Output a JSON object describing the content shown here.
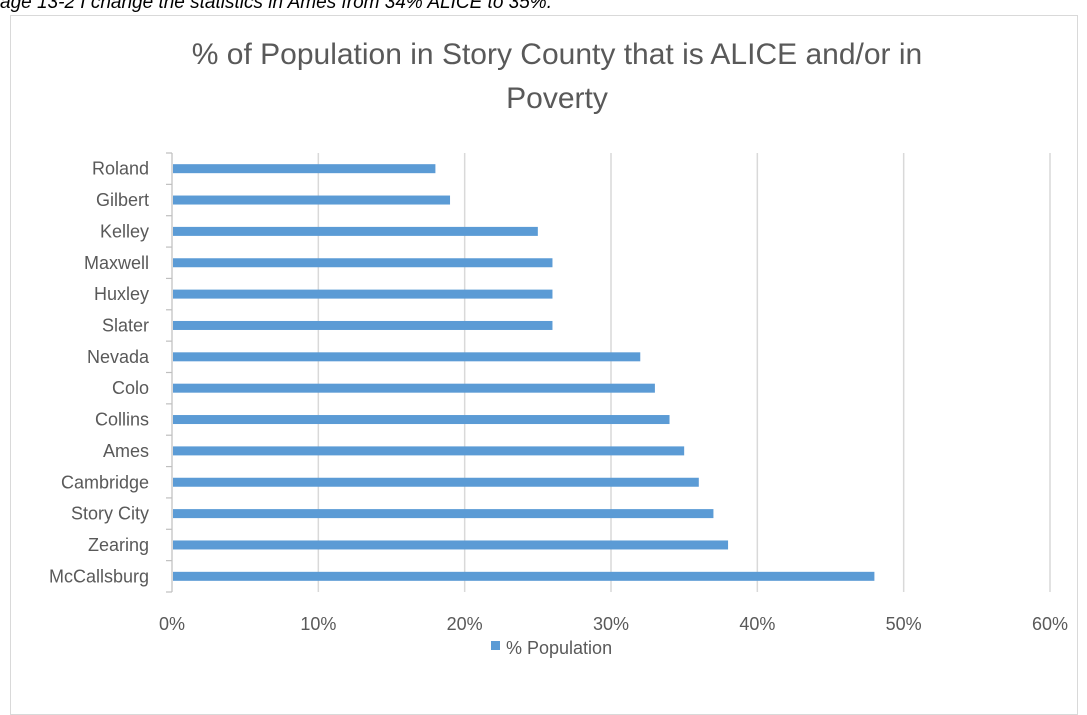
{
  "page_note": "age 13-2 I change the statistics in Ames from 34% ALICE to 35%.",
  "chart_data": {
    "type": "bar",
    "orientation": "horizontal",
    "title_lines": [
      "% of Population in Story County that is ALICE and/or in",
      "Poverty"
    ],
    "categories": [
      "Roland",
      "Gilbert",
      "Kelley",
      "Maxwell",
      "Huxley",
      "Slater",
      "Nevada",
      "Colo",
      "Collins",
      "Ames ",
      "Cambridge",
      "Story City",
      "Zearing",
      "McCallsburg"
    ],
    "series": [
      {
        "name": "% Population",
        "values": [
          18,
          19,
          25,
          26,
          26,
          26,
          32,
          33,
          34,
          35,
          36,
          37,
          38,
          48
        ]
      }
    ],
    "xlim": [
      0,
      60
    ],
    "xticks": [
      0,
      10,
      20,
      30,
      40,
      50,
      60
    ],
    "tick_labels": [
      "0%",
      "10%",
      "20%",
      "30%",
      "40%",
      "50%",
      "60%"
    ],
    "grid": "vertical",
    "legend": "bottom",
    "colors": {
      "bar": "#5b9bd5",
      "grid": "#d9d9d9",
      "axis": "#bfbfbf",
      "text": "#595959"
    }
  }
}
